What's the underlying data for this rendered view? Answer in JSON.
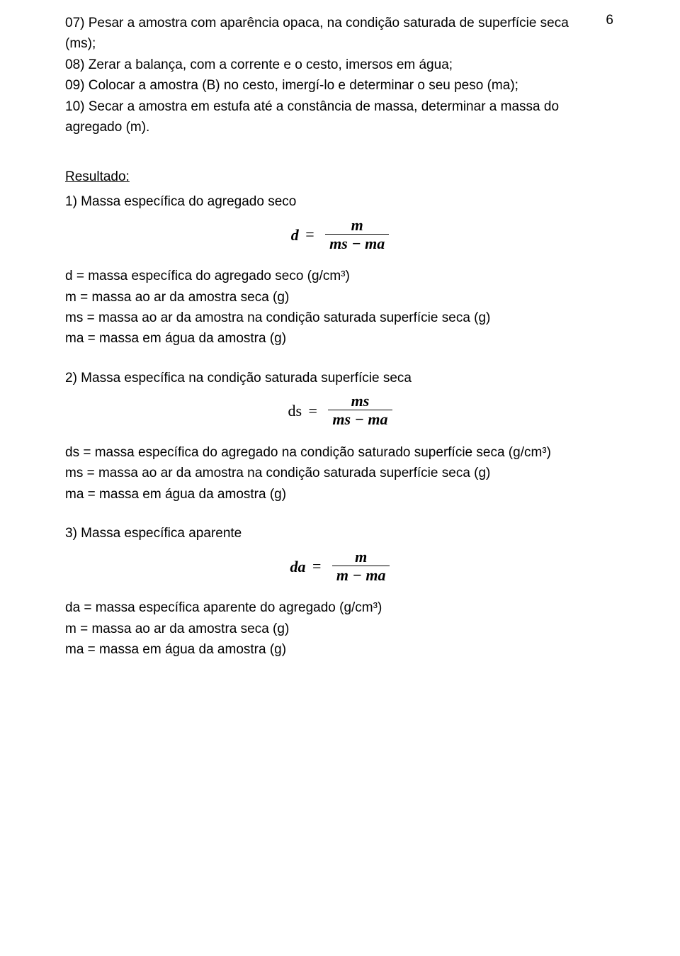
{
  "page_number": "6",
  "steps": {
    "s07a": "07) Pesar a amostra com aparência opaca, na condição saturada de superfície seca",
    "s07b": "(ms);",
    "s08": "08) Zerar a balança, com a corrente e o cesto, imersos em água;",
    "s09": "09) Colocar a amostra (B) no cesto, imergí-lo e determinar o seu peso (ma);",
    "s10a": "10) Secar a amostra em estufa até a constância de massa, determinar a massa do",
    "s10b": "agregado (m)."
  },
  "resultado_heading": "Resultado:",
  "sections": {
    "sec1": {
      "title": "1)  Massa específica do agregado seco",
      "formula": {
        "lhs": "d",
        "num": "m",
        "den": "ms − ma"
      },
      "defs": {
        "d": "d = massa específica do agregado seco (g/cm³)",
        "m": "m = massa ao ar da amostra seca (g)",
        "ms": "ms = massa ao ar da amostra na condição saturada superfície seca (g)",
        "ma": "ma = massa em água da amostra (g)"
      }
    },
    "sec2": {
      "title": "2)  Massa específica na condição saturada superfície seca",
      "formula": {
        "lhs": "ds",
        "num": "ms",
        "den": "ms − ma"
      },
      "defs": {
        "ds": "ds = massa específica do agregado na condição saturado superfície seca (g/cm³)",
        "ms": "ms = massa ao ar da amostra na condição saturada superfície seca (g)",
        "ma": "ma = massa em água da amostra (g)"
      }
    },
    "sec3": {
      "title": "3)  Massa específica aparente",
      "formula": {
        "lhs": "da",
        "num": "m",
        "den": "m − ma"
      },
      "defs": {
        "da": "da = massa específica aparente do agregado (g/cm³)",
        "m": "m = massa ao ar da amostra seca (g)",
        "ma": "ma = massa em água da amostra (g)"
      }
    }
  }
}
